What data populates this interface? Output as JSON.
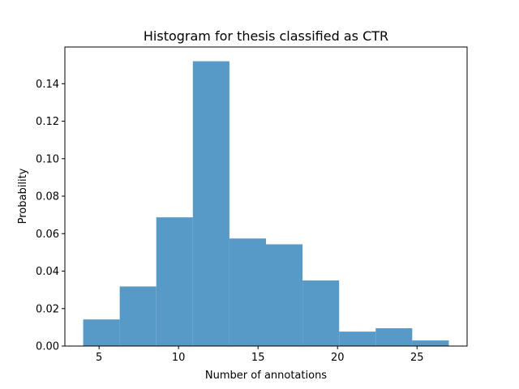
{
  "chart_data": {
    "type": "bar",
    "title": "Histogram for thesis classified as CTR",
    "xlabel": "Number of annotations",
    "ylabel": "Probability",
    "bin_edges": [
      4.0,
      6.3,
      8.6,
      10.9,
      13.2,
      15.5,
      17.8,
      20.1,
      22.4,
      24.7,
      27.0
    ],
    "values": [
      0.0142,
      0.0318,
      0.0687,
      0.152,
      0.0574,
      0.0543,
      0.035,
      0.0077,
      0.0095,
      0.003
    ],
    "xlim": [
      2.85,
      28.15
    ],
    "ylim": [
      0,
      0.1596
    ],
    "xticks": [
      5,
      10,
      15,
      20,
      25
    ],
    "xtick_labels": [
      "5",
      "10",
      "15",
      "20",
      "25"
    ],
    "yticks": [
      0.0,
      0.02,
      0.04,
      0.06,
      0.08,
      0.1,
      0.12,
      0.14
    ],
    "ytick_labels": [
      "0.00",
      "0.02",
      "0.04",
      "0.06",
      "0.08",
      "0.10",
      "0.12",
      "0.14"
    ],
    "bar_color": "#5799c7",
    "grid": false,
    "legend": "none"
  }
}
